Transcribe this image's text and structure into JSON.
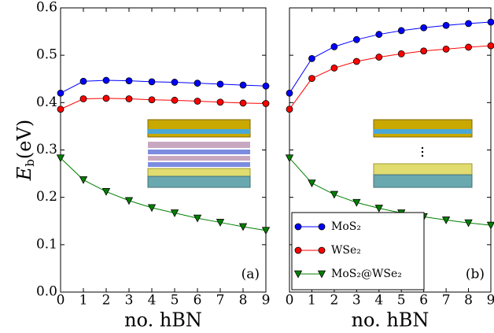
{
  "chart_data": [
    {
      "type": "line",
      "panel_label": "(a)",
      "xlabel": "no. hBN",
      "ylabel": {
        "main": "E",
        "sub": "b",
        "unit": "(eV)"
      },
      "x": [
        0,
        1,
        2,
        3,
        4,
        5,
        6,
        7,
        8,
        9
      ],
      "series": [
        {
          "color": "#0000ff",
          "marker": "circle",
          "values": [
            0.42,
            0.445,
            0.447,
            0.446,
            0.444,
            0.443,
            0.441,
            0.439,
            0.437,
            0.435
          ]
        },
        {
          "color": "#ff0000",
          "marker": "circle",
          "values": [
            0.386,
            0.408,
            0.409,
            0.408,
            0.406,
            0.405,
            0.403,
            0.401,
            0.399,
            0.398
          ]
        },
        {
          "color": "#008000",
          "marker": "triangle-down",
          "values": [
            0.283,
            0.237,
            0.212,
            0.193,
            0.178,
            0.167,
            0.156,
            0.147,
            0.138,
            0.13
          ]
        }
      ],
      "xlim": [
        0,
        9
      ],
      "xticks": [
        0,
        1,
        2,
        3,
        4,
        5,
        6,
        7,
        8,
        9
      ],
      "ylim": [
        0,
        0.6
      ],
      "yticks": [
        {
          "value": 0,
          "label": "0.0"
        },
        0.1,
        0.2,
        0.3,
        0.4,
        0.5,
        0.6
      ]
    },
    {
      "type": "line",
      "panel_label": "(b)",
      "xlabel": "no. hBN",
      "x": [
        0,
        1,
        2,
        3,
        4,
        5,
        6,
        7,
        8,
        9
      ],
      "series": [
        {
          "name": "MoS₂",
          "color": "#0000ff",
          "marker": "circle",
          "values": [
            0.42,
            0.493,
            0.518,
            0.533,
            0.544,
            0.552,
            0.558,
            0.563,
            0.567,
            0.57
          ]
        },
        {
          "name": "WSe₂",
          "color": "#ff0000",
          "marker": "circle",
          "values": [
            0.386,
            0.451,
            0.473,
            0.487,
            0.496,
            0.503,
            0.509,
            0.513,
            0.517,
            0.52
          ]
        },
        {
          "name": "MoS₂@WSe₂",
          "color": "#008000",
          "marker": "triangle-down",
          "values": [
            0.283,
            0.23,
            0.206,
            0.189,
            0.177,
            0.167,
            0.159,
            0.152,
            0.146,
            0.141
          ]
        }
      ],
      "xlim": [
        0,
        9
      ],
      "xticks": [
        0,
        1,
        2,
        3,
        4,
        5,
        6,
        7,
        8,
        9
      ],
      "ylim": [
        0,
        0.6
      ],
      "legend": "lower left"
    }
  ]
}
